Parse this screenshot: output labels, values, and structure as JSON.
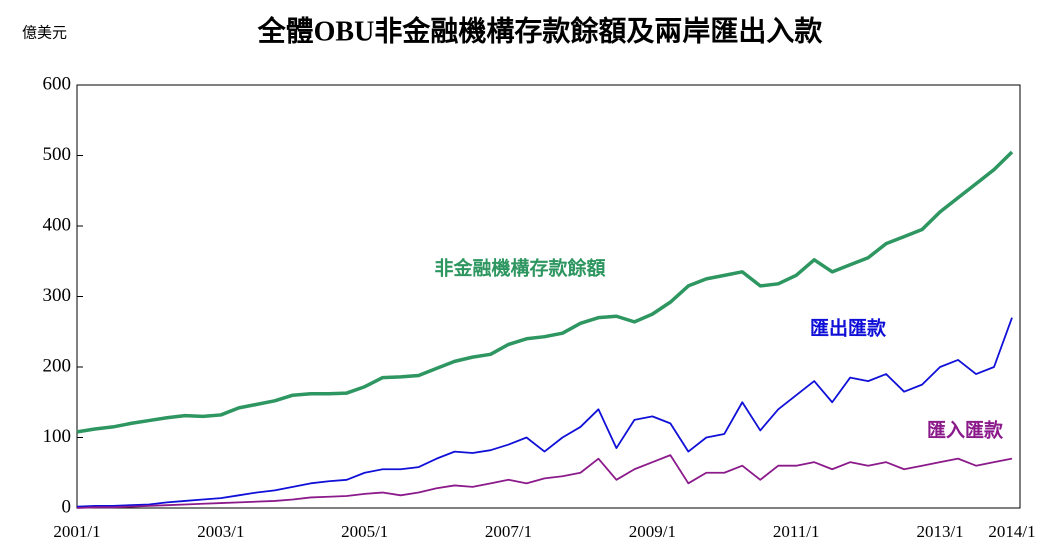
{
  "unit": "億美元",
  "chart_data": {
    "type": "line",
    "title": "全體OBU非金融機構存款餘額及兩岸匯出入款",
    "categories": [
      "2001/1",
      null,
      null,
      null,
      null,
      null,
      null,
      null,
      "2003/1",
      null,
      null,
      null,
      null,
      null,
      null,
      null,
      "2005/1",
      null,
      null,
      null,
      null,
      null,
      null,
      null,
      "2007/1",
      null,
      null,
      null,
      null,
      null,
      null,
      null,
      "2009/1",
      null,
      null,
      null,
      null,
      null,
      null,
      null,
      "2011/1",
      null,
      null,
      null,
      null,
      null,
      null,
      null,
      "2013/1",
      null,
      null,
      null,
      "2014/1"
    ],
    "series": [
      {
        "name": "非金融機構存款餘額",
        "color": "#2e9660",
        "values": [
          108,
          112,
          115,
          120,
          124,
          128,
          131,
          130,
          132,
          142,
          147,
          152,
          160,
          162,
          162,
          163,
          172,
          185,
          186,
          188,
          198,
          208,
          214,
          218,
          232,
          240,
          243,
          248,
          262,
          270,
          272,
          264,
          275,
          292,
          315,
          325,
          330,
          335,
          315,
          318,
          330,
          352,
          335,
          345,
          355,
          375,
          385,
          395,
          420,
          440,
          460,
          480,
          505
        ]
      },
      {
        "name": "匯出匯款",
        "color": "#1010d8",
        "values": [
          2,
          3,
          3,
          4,
          5,
          8,
          10,
          12,
          14,
          18,
          22,
          25,
          30,
          35,
          38,
          40,
          50,
          55,
          55,
          58,
          70,
          80,
          78,
          82,
          90,
          100,
          80,
          100,
          115,
          140,
          85,
          125,
          130,
          120,
          80,
          100,
          105,
          150,
          110,
          140,
          160,
          180,
          150,
          185,
          180,
          190,
          165,
          175,
          200,
          210,
          190,
          200,
          270
        ]
      },
      {
        "name": "匯入匯款",
        "color": "#8b1a8b",
        "values": [
          0,
          1,
          1,
          2,
          3,
          4,
          5,
          6,
          7,
          8,
          9,
          10,
          12,
          15,
          16,
          17,
          20,
          22,
          18,
          22,
          28,
          32,
          30,
          35,
          40,
          35,
          42,
          45,
          50,
          70,
          40,
          55,
          65,
          75,
          35,
          50,
          50,
          60,
          40,
          60,
          60,
          65,
          55,
          65,
          60,
          65,
          55,
          60,
          65,
          70,
          60,
          65,
          70
        ]
      }
    ],
    "ylim": [
      0,
      600
    ],
    "yticks": [
      0,
      100,
      200,
      300,
      400,
      500,
      600
    ]
  }
}
